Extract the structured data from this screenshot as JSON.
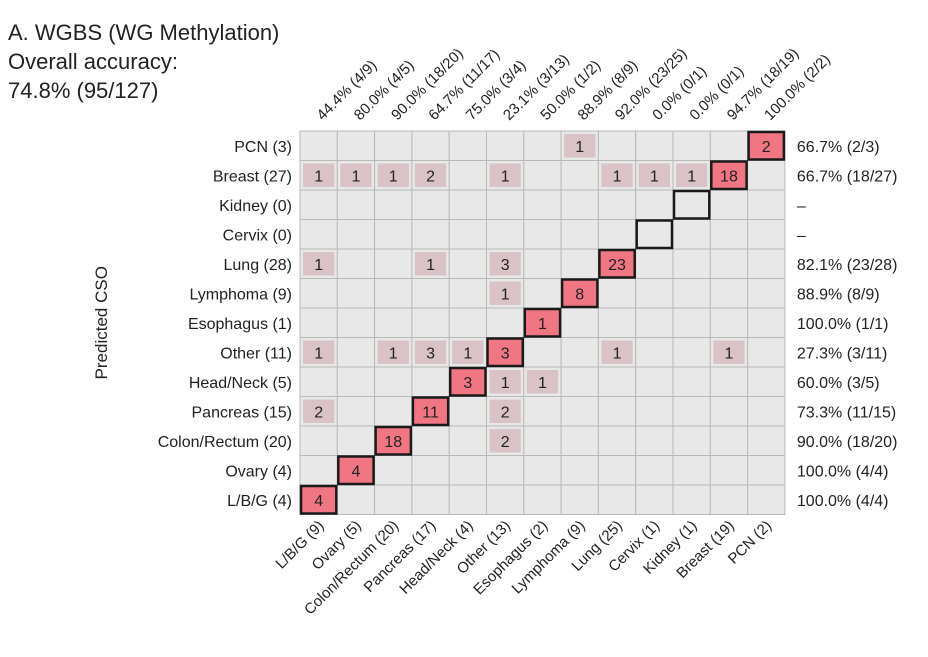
{
  "chart_data": {
    "type": "heatmap",
    "title": "A. WGBS (WG Methylation)",
    "subtitle_label": "Overall accuracy:",
    "subtitle_value": "74.8% (95/127)",
    "ylabel": "Predicted CSO",
    "row_labels": [
      "PCN (3)",
      "Breast (27)",
      "Kidney (0)",
      "Cervix (0)",
      "Lung (28)",
      "Lymphoma (9)",
      "Esophagus (1)",
      "Other (11)",
      "Head/Neck (5)",
      "Pancreas (15)",
      "Colon/Rectum (20)",
      "Ovary (4)",
      "L/B/G (4)"
    ],
    "col_labels": [
      "L/B/G (9)",
      "Ovary (5)",
      "Colon/Rectum (20)",
      "Pancreas (17)",
      "Head/Neck (4)",
      "Other (13)",
      "Esophagus (2)",
      "Lymphoma (9)",
      "Lung (25)",
      "Cervix (1)",
      "Kidney (1)",
      "Breast (19)",
      "PCN (2)"
    ],
    "col_accuracy": [
      "44.4% (4/9)",
      "80.0% (4/5)",
      "90.0% (18/20)",
      "64.7% (11/17)",
      "75.0% (3/4)",
      "23.1% (3/13)",
      "50.0% (1/2)",
      "88.9% (8/9)",
      "92.0% (23/25)",
      "0.0% (0/1)",
      "0.0% (0/1)",
      "94.7% (18/19)",
      "100.0% (2/2)"
    ],
    "row_accuracy": [
      "66.7% (2/3)",
      "66.7% (18/27)",
      "–",
      "–",
      "82.1% (23/28)",
      "88.9% (8/9)",
      "100.0% (1/1)",
      "27.3% (3/11)",
      "60.0% (3/5)",
      "73.3% (11/15)",
      "90.0% (18/20)",
      "100.0% (4/4)",
      "100.0% (4/4)"
    ],
    "matrix": [
      [
        0,
        0,
        0,
        0,
        0,
        0,
        0,
        1,
        0,
        0,
        0,
        0,
        2
      ],
      [
        1,
        1,
        1,
        2,
        0,
        1,
        0,
        0,
        1,
        1,
        1,
        18,
        0
      ],
      [
        0,
        0,
        0,
        0,
        0,
        0,
        0,
        0,
        0,
        0,
        0,
        0,
        0
      ],
      [
        0,
        0,
        0,
        0,
        0,
        0,
        0,
        0,
        0,
        0,
        0,
        0,
        0
      ],
      [
        1,
        0,
        0,
        1,
        0,
        3,
        0,
        0,
        23,
        0,
        0,
        0,
        0
      ],
      [
        0,
        0,
        0,
        0,
        0,
        1,
        0,
        8,
        0,
        0,
        0,
        0,
        0
      ],
      [
        0,
        0,
        0,
        0,
        0,
        0,
        1,
        0,
        0,
        0,
        0,
        0,
        0
      ],
      [
        1,
        0,
        1,
        3,
        1,
        3,
        0,
        0,
        1,
        0,
        0,
        1,
        0
      ],
      [
        0,
        0,
        0,
        0,
        3,
        1,
        1,
        0,
        0,
        0,
        0,
        0,
        0
      ],
      [
        2,
        0,
        0,
        11,
        0,
        2,
        0,
        0,
        0,
        0,
        0,
        0,
        0
      ],
      [
        0,
        0,
        18,
        0,
        0,
        2,
        0,
        0,
        0,
        0,
        0,
        0,
        0
      ],
      [
        0,
        4,
        0,
        0,
        0,
        0,
        0,
        0,
        0,
        0,
        0,
        0,
        0
      ],
      [
        4,
        0,
        0,
        0,
        0,
        0,
        0,
        0,
        0,
        0,
        0,
        0,
        0
      ]
    ],
    "colors": {
      "background_cell": "#e8e8e8",
      "grid_line": "#b9b9b9",
      "diagonal_fill": "#f07683",
      "diagonal_border": "#1a1a1a",
      "off_diagonal_fill": "#d9c3c6",
      "off_diagonal_high": "#f0adb6"
    }
  }
}
